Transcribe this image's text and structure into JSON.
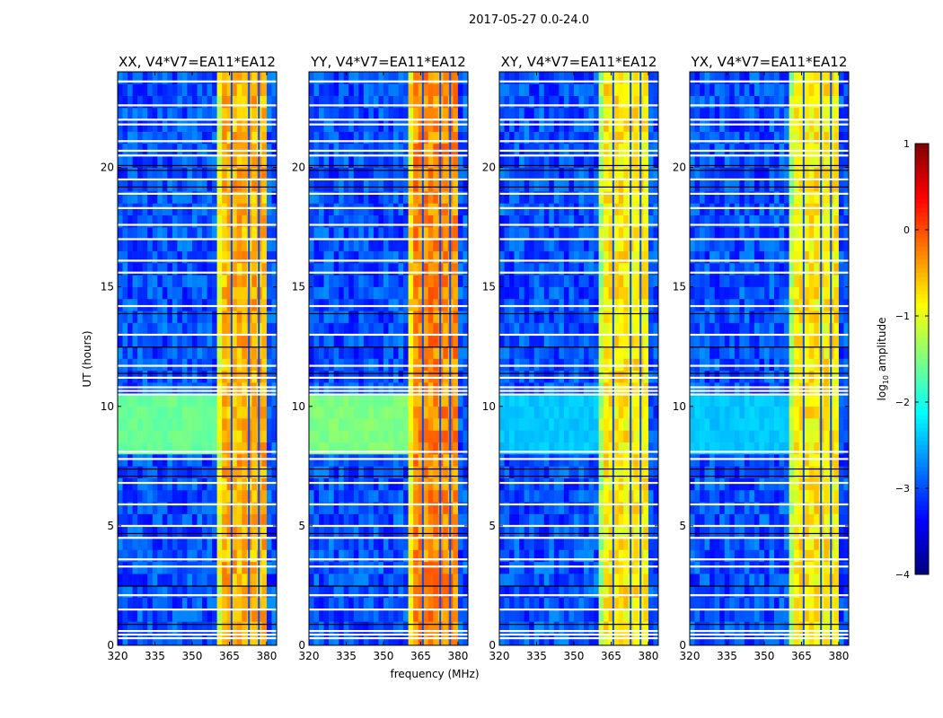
{
  "chart_data": {
    "type": "heatmap",
    "suptitle": "2017-05-27 0.0-24.0",
    "xlabel": "frequency (MHz)",
    "ylabel": "UT (hours)",
    "xlim": [
      320,
      384
    ],
    "ylim": [
      0,
      24
    ],
    "xticks": [
      320,
      335,
      350,
      365,
      380
    ],
    "yticks": [
      0,
      5,
      10,
      15,
      20
    ],
    "freq_bin_mhz": 2,
    "time_bin_hours": 0.5,
    "panels": [
      {
        "title": "XX, V4*V7=EA11*EA12",
        "band_level": -0.5,
        "background_level": -3.0,
        "features": [
          {
            "t": [
              8.0,
              10.5
            ],
            "f": [
              320,
              361
            ],
            "value": -1.6
          }
        ]
      },
      {
        "title": "YY, V4*V7=EA11*EA12",
        "band_level": -0.3,
        "background_level": -3.0,
        "features": [
          {
            "t": [
              8.0,
              10.5
            ],
            "f": [
              320,
              361
            ],
            "value": -1.5
          }
        ]
      },
      {
        "title": "XY, V4*V7=EA11*EA12",
        "band_level": -0.8,
        "background_level": -3.0,
        "features": [
          {
            "t": [
              8.0,
              10.5
            ],
            "f": [
              320,
              361
            ],
            "value": -2.4
          }
        ]
      },
      {
        "title": "YX, V4*V7=EA11*EA12",
        "band_level": -0.8,
        "background_level": -3.0,
        "features": [
          {
            "t": [
              8.0,
              10.5
            ],
            "f": [
              320,
              361
            ],
            "value": -2.4
          }
        ]
      }
    ],
    "rfi_band_mhz": [
      360,
      381
    ],
    "band_gaps_mhz": [
      365.5,
      372.5,
      376.5
    ],
    "flagged_times_hours": [
      0.3,
      0.45,
      0.6,
      1.5,
      2.1,
      3.3,
      3.6,
      4.5,
      5.0,
      5.9,
      6.8,
      7.8,
      8.1,
      10.5,
      10.65,
      10.8,
      11.2,
      11.7,
      13.0,
      14.2,
      15.6,
      16.1,
      17.0,
      17.6,
      18.3,
      18.9,
      19.5,
      20.5,
      20.7,
      21.1,
      21.8,
      22.0,
      22.6,
      23.6
    ],
    "dark_times_hours": [
      0.9,
      2.5,
      4.7,
      7.1,
      7.4,
      11.4,
      12.5,
      13.9,
      19.2,
      19.9,
      20.1
    ],
    "colorbar": {
      "label": "log10 amplitude",
      "label_main": "log",
      "label_sub": "10",
      "label_rest": " amplitude",
      "colormap": "jet",
      "range": [
        -4,
        1
      ],
      "ticks": [
        1,
        0,
        -1,
        -2,
        -3,
        -4
      ]
    }
  }
}
